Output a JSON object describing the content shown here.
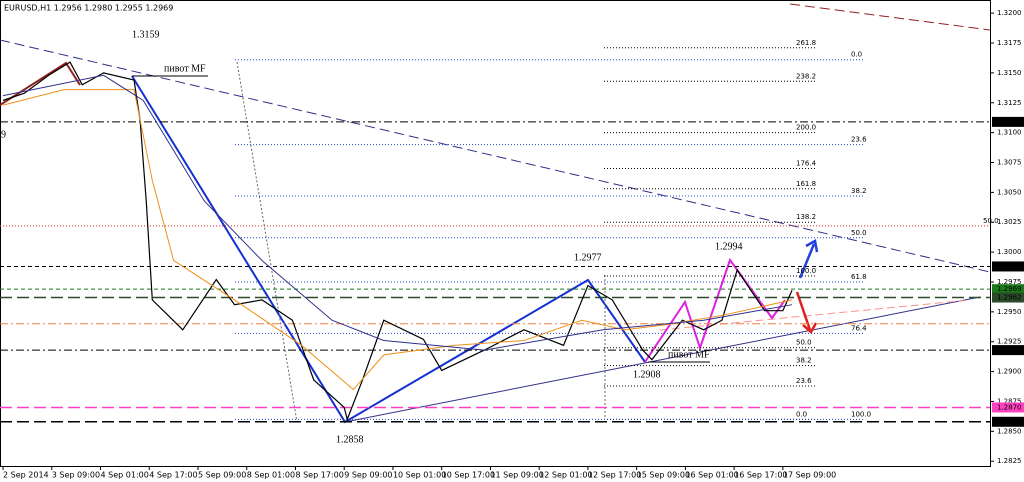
{
  "chart_data": {
    "type": "line",
    "title": "EURUSD,H1  1.2956 1.2980 1.2955 1.2969",
    "xlim": [
      -1,
      324
    ],
    "ylim": [
      1.2821,
      1.3211
    ],
    "xticks": [
      {
        "value": 0,
        "label": "2 Sep 2014"
      },
      {
        "value": 16,
        "label": "3 Sep 09:00"
      },
      {
        "value": 32,
        "label": "4 Sep 01:00"
      },
      {
        "value": 48,
        "label": "4 Sep 17:00"
      },
      {
        "value": 64,
        "label": "5 Sep 09:00"
      },
      {
        "value": 80,
        "label": "8 Sep 01:00"
      },
      {
        "value": 96,
        "label": "8 Sep 17:00"
      },
      {
        "value": 112,
        "label": "9 Sep 09:00"
      },
      {
        "value": 128,
        "label": "10 Sep 01:00"
      },
      {
        "value": 144,
        "label": "10 Sep 17:00"
      },
      {
        "value": 160,
        "label": "11 Sep 09:00"
      },
      {
        "value": 176,
        "label": "12 Sep 01:00"
      },
      {
        "value": 192,
        "label": "12 Sep 17:00"
      },
      {
        "value": 208,
        "label": "15 Sep 09:00"
      },
      {
        "value": 224,
        "label": "16 Sep 01:00"
      },
      {
        "value": 240,
        "label": "16 Sep 17:00"
      },
      {
        "value": 256,
        "label": "17 Sep 09:00"
      }
    ],
    "yticks": [
      {
        "value": 1.2825,
        "label": "1.2825"
      },
      {
        "value": 1.285,
        "label": "1.2850"
      },
      {
        "value": 1.2875,
        "label": "1.2875"
      },
      {
        "value": 1.29,
        "label": "1.2900"
      },
      {
        "value": 1.2925,
        "label": "1.2925"
      },
      {
        "value": 1.295,
        "label": "1.2950"
      },
      {
        "value": 1.2975,
        "label": "1.2975"
      },
      {
        "value": 1.3,
        "label": "1.3000"
      },
      {
        "value": 1.3025,
        "label": "1.3025"
      },
      {
        "value": 1.305,
        "label": "1.3050"
      },
      {
        "value": 1.3075,
        "label": "1.3075"
      },
      {
        "value": 1.31,
        "label": "1.3100"
      },
      {
        "value": 1.3125,
        "label": "1.3125"
      },
      {
        "value": 1.315,
        "label": "1.3150"
      },
      {
        "value": 1.3175,
        "label": "1.3175"
      },
      {
        "value": 1.32,
        "label": "1.3200"
      }
    ],
    "series": [
      {
        "color": "#000000",
        "width": 1.2,
        "x": [
          0,
          7,
          15,
          22,
          26,
          33,
          43,
          45,
          47,
          49,
          53,
          59,
          70,
          76,
          85,
          95,
          102,
          112,
          113,
          118,
          125,
          138,
          144,
          158,
          171,
          184,
          192,
          200,
          210,
          213,
          223,
          230,
          236,
          241,
          250,
          256,
          259
        ],
        "values": [
          1.3127,
          1.3133,
          1.3148,
          1.3159,
          1.314,
          1.315,
          1.3144,
          1.311,
          1.3043,
          1.296,
          1.295,
          1.2935,
          1.2977,
          1.2956,
          1.296,
          1.2943,
          1.2893,
          1.287,
          1.286,
          1.2893,
          1.2943,
          1.2927,
          1.2901,
          1.2918,
          1.2935,
          1.2922,
          1.2972,
          1.296,
          1.2918,
          1.291,
          1.2943,
          1.2935,
          1.2943,
          1.2985,
          1.2951,
          1.2951,
          1.2968
        ]
      },
      {
        "color": "#f0901a",
        "width": 1,
        "x": [
          0,
          20,
          43,
          49,
          56,
          76,
          98,
          115,
          125,
          148,
          171,
          190,
          204,
          217,
          236,
          259
        ],
        "values": [
          1.3123,
          1.3136,
          1.3136,
          1.306,
          1.2993,
          1.296,
          1.2922,
          1.2885,
          1.2914,
          1.2922,
          1.2926,
          1.2943,
          1.2935,
          1.2939,
          1.2947,
          1.296
        ]
      },
      {
        "color": "#30308a",
        "width": 1,
        "x": [
          0,
          33,
          46,
          66,
          85,
          108,
          125,
          158,
          197,
          230,
          259
        ],
        "values": [
          1.3131,
          1.3148,
          1.3127,
          1.3043,
          1.2993,
          1.2943,
          1.2926,
          1.2918,
          1.2935,
          1.2943,
          1.2956
        ]
      }
    ],
    "levels": [
      {
        "value": 1.3109,
        "label": "1.3109",
        "color": "#000000",
        "style": "dashdot"
      },
      {
        "value": 1.2988,
        "label": "1.2988",
        "color": "#000000",
        "style": "dashed"
      },
      {
        "value": 1.2969,
        "label": "1.2969",
        "color": "#1a7a1a",
        "style": "dashed"
      },
      {
        "value": 1.2962,
        "label": "1.2962",
        "color": "#2a4a2a",
        "style": "longdash"
      },
      {
        "value": 1.294,
        "color": "#f08040",
        "style": "dashdot"
      },
      {
        "value": 1.2918,
        "label": "1.2918",
        "color": "#000000",
        "style": "dashdot"
      },
      {
        "value": 1.287,
        "label": "1.2870",
        "color": "#ff40c0",
        "style": "longdash"
      },
      {
        "value": 1.2858,
        "label": "1.2858",
        "color": "#000000",
        "style": "longdash"
      }
    ],
    "fib_levels": [
      {
        "value": 1.3171,
        "label": "261.8",
        "color": "#000000"
      },
      {
        "value": 1.3143,
        "label": "238.2",
        "color": "#000000"
      },
      {
        "value": 1.31,
        "label": "200.0",
        "color": "#000000"
      },
      {
        "value": 1.307,
        "label": "176.4",
        "color": "#000000"
      },
      {
        "value": 1.3053,
        "label": "161.8",
        "color": "#000000"
      },
      {
        "value": 1.3025,
        "label": "138.2",
        "color": "#000000"
      },
      {
        "value": 1.298,
        "label": "100.0",
        "color": "#000000"
      },
      {
        "value": 1.292,
        "label": "50.0",
        "color": "#000000"
      },
      {
        "value": 1.2905,
        "label": "38.2",
        "color": "#000000"
      },
      {
        "value": 1.2888,
        "label": "23.6",
        "color": "#000000"
      },
      {
        "value": 1.286,
        "label": "0.0",
        "color": "#000000"
      },
      {
        "value": 1.3161,
        "label": "0.0",
        "color": "#2040c0"
      },
      {
        "value": 1.309,
        "label": "23.6",
        "color": "#2040c0"
      },
      {
        "value": 1.3047,
        "label": "38.2",
        "color": "#2040c0"
      },
      {
        "value": 1.3012,
        "label": "50.0",
        "color": "#2040c0"
      },
      {
        "value": 1.2975,
        "label": "61.8",
        "color": "#2040c0"
      },
      {
        "value": 1.2932,
        "label": "76.4",
        "color": "#2040c0"
      },
      {
        "value": 1.286,
        "label": "100.0",
        "color": "#2040c0"
      },
      {
        "value": 1.3022,
        "label": "50.0",
        "color": "#e02020"
      }
    ],
    "annotations": [
      "1.3159",
      "пивот MF",
      "1.2977",
      "1.2994",
      "1.2908",
      "пивот MF",
      "1.2858",
      "9"
    ]
  }
}
